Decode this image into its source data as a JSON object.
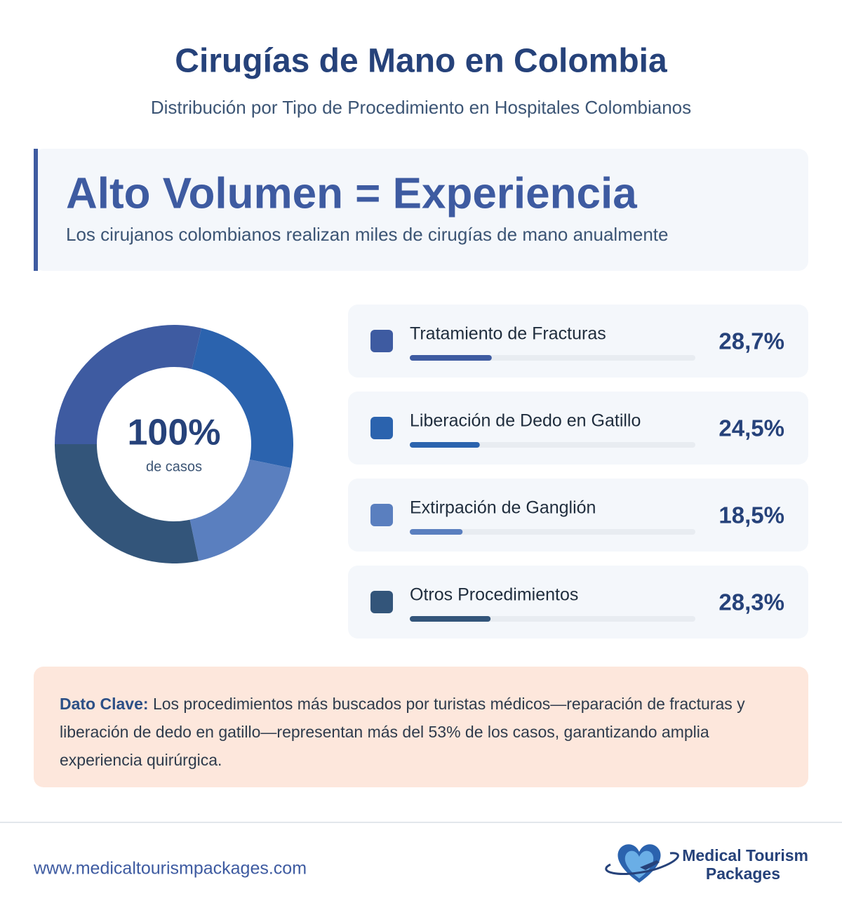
{
  "title": "Cirugías de Mano en Colombia",
  "subtitle": "Distribución por Tipo de Procedimiento en Hospitales Colombianos",
  "highlight": {
    "heading": "Alto Volumen = Experiencia",
    "text": "Los cirujanos colombianos realizan miles de cirugías de mano anualmente"
  },
  "chart_data": {
    "type": "pie",
    "donut": true,
    "center_value": "100%",
    "center_label": "de casos",
    "categories": [
      "Tratamiento de Fracturas",
      "Liberación de Dedo en Gatillo",
      "Extirpación de Ganglión",
      "Otros Procedimientos"
    ],
    "values": [
      28.7,
      24.5,
      18.5,
      28.3
    ],
    "value_labels": [
      "28,7%",
      "24,5%",
      "18,5%",
      "28,3%"
    ],
    "colors": [
      "#3e5ba1",
      "#2b63ae",
      "#5a7fbf",
      "#33557a"
    ]
  },
  "key_fact": {
    "label": "Dato Clave:",
    "text": "Los procedimientos más buscados por turistas médicos—reparación de fracturas y liberación de dedo en gatillo—representan más del 53% de los casos, garantizando amplia experiencia quirúrgica."
  },
  "footer": {
    "url": "www.medicaltourismpackages.com",
    "logo_line1": "Medical Tourism",
    "logo_line2": "Packages"
  }
}
